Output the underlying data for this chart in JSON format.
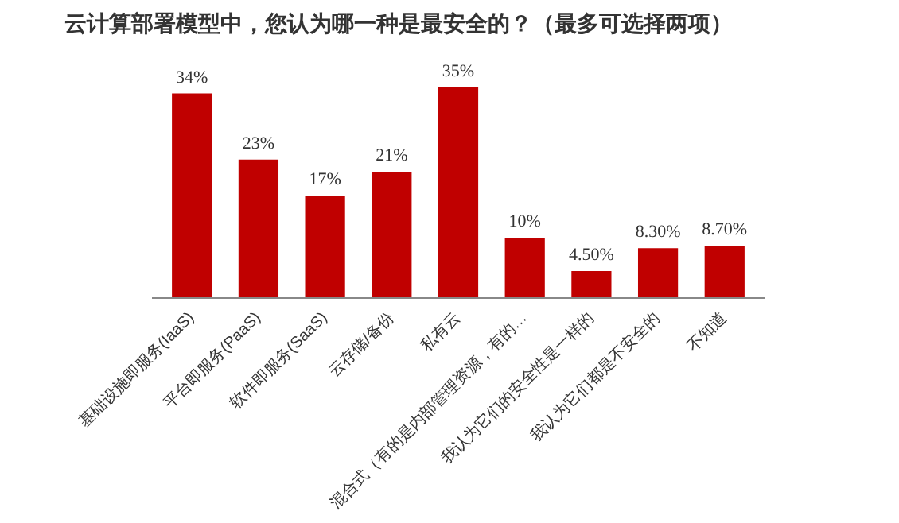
{
  "chart_data": {
    "type": "bar",
    "title": "云计算部署模型中，您认为哪一种是最安全的？（最多可选择两项）",
    "categories": [
      "基础设施即服务(IaaS)",
      "平台即服务(PaaS)",
      "软件即服务(SaaS)",
      "云存储/备份",
      "私有云",
      "混合式（有的是内部管理资源，有的…",
      "我认为它们的安全性是一样的",
      "我认为它们都是不安全的",
      "不知道"
    ],
    "values": [
      34,
      23,
      17,
      21,
      35,
      10,
      4.5,
      8.3,
      8.7
    ],
    "value_labels": [
      "34%",
      "23%",
      "17%",
      "21%",
      "35%",
      "10%",
      "4.50%",
      "8.30%",
      "8.70%"
    ],
    "color": "#c00000",
    "grid": false
  }
}
